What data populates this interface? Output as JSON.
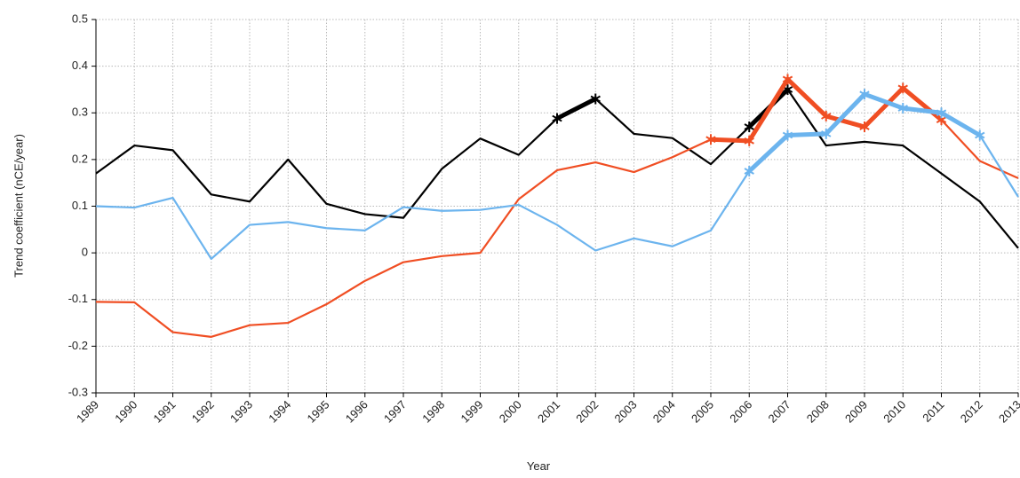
{
  "chart_data": {
    "type": "line",
    "xlabel": "Year",
    "ylabel": "Trend coefficient (nCE/year)",
    "x": [
      1989,
      1990,
      1991,
      1992,
      1993,
      1994,
      1995,
      1996,
      1997,
      1998,
      1999,
      2000,
      2001,
      2002,
      2003,
      2004,
      2005,
      2006,
      2007,
      2008,
      2009,
      2010,
      2011,
      2012,
      2013
    ],
    "xlim": [
      1989,
      2013
    ],
    "xticks": [
      1989,
      1990,
      1991,
      1992,
      1993,
      1994,
      1995,
      1996,
      1997,
      1998,
      1999,
      2000,
      2001,
      2002,
      2003,
      2004,
      2005,
      2006,
      2007,
      2008,
      2009,
      2010,
      2011,
      2012,
      2013
    ],
    "ylim": [
      -0.3,
      0.5
    ],
    "yticks": [
      0.5,
      0.4,
      0.3,
      0.2,
      0.1,
      0,
      -0.1,
      -0.2,
      -0.3
    ],
    "grid": true,
    "series": [
      {
        "color": "#000000",
        "values": [
          0.17,
          0.23,
          0.22,
          0.125,
          0.11,
          0.2,
          0.105,
          0.083,
          0.075,
          0.18,
          0.245,
          0.21,
          0.288,
          0.33,
          0.255,
          0.246,
          0.19,
          0.27,
          0.35,
          0.23,
          0.238,
          0.23,
          0.17,
          0.11,
          0.01
        ],
        "significant": [
          false,
          false,
          false,
          false,
          false,
          false,
          false,
          false,
          false,
          false,
          false,
          false,
          true,
          true,
          false,
          false,
          false,
          true,
          true,
          false,
          false,
          false,
          false,
          false,
          false
        ]
      },
      {
        "color": "#f04e23",
        "values": [
          -0.105,
          -0.106,
          -0.17,
          -0.18,
          -0.155,
          -0.15,
          -0.11,
          -0.06,
          -0.02,
          -0.007,
          0.0,
          0.115,
          0.177,
          0.194,
          0.173,
          0.205,
          0.243,
          0.24,
          0.372,
          0.293,
          0.27,
          0.353,
          0.285,
          0.197,
          0.16
        ],
        "significant": [
          false,
          false,
          false,
          false,
          false,
          false,
          false,
          false,
          false,
          false,
          false,
          false,
          false,
          false,
          false,
          false,
          true,
          true,
          true,
          true,
          true,
          true,
          true,
          false,
          false
        ]
      },
      {
        "color": "#6cb4ee",
        "values": [
          0.1,
          0.097,
          0.118,
          -0.013,
          0.06,
          0.066,
          0.053,
          0.048,
          0.098,
          0.09,
          0.092,
          0.103,
          0.06,
          0.005,
          0.031,
          0.014,
          0.048,
          0.175,
          0.252,
          0.255,
          0.34,
          0.31,
          0.3,
          0.252,
          0.12
        ],
        "significant": [
          false,
          false,
          false,
          false,
          false,
          false,
          false,
          false,
          false,
          false,
          false,
          false,
          false,
          false,
          false,
          false,
          false,
          true,
          true,
          true,
          true,
          true,
          true,
          true,
          false
        ]
      }
    ]
  }
}
